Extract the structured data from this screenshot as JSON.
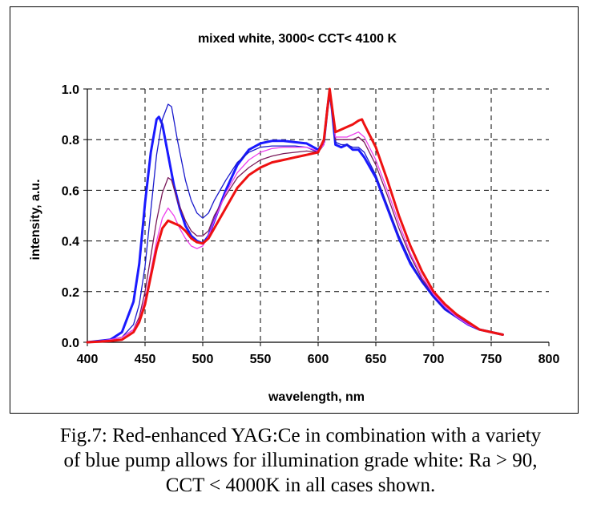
{
  "chart_data": {
    "type": "line",
    "title": "mixed white, 3000< CCT< 4100 K",
    "xlabel": "wavelength, nm",
    "ylabel": "intensity, a.u.",
    "xlim": [
      400,
      800
    ],
    "ylim": [
      0,
      1.0
    ],
    "x_ticks": [
      "400",
      "450",
      "500",
      "550",
      "600",
      "650",
      "700",
      "750",
      "800"
    ],
    "y_ticks": [
      "0.0",
      "0.2",
      "0.4",
      "0.6",
      "0.8",
      "1.0"
    ],
    "grid": "dashed",
    "legend": "none",
    "series": [
      {
        "color": "#1a1aff",
        "style": "thick",
        "points": [
          [
            400,
            0.0
          ],
          [
            420,
            0.01
          ],
          [
            430,
            0.04
          ],
          [
            440,
            0.16
          ],
          [
            445,
            0.31
          ],
          [
            450,
            0.55
          ],
          [
            455,
            0.75
          ],
          [
            460,
            0.88
          ],
          [
            462,
            0.89
          ],
          [
            465,
            0.86
          ],
          [
            470,
            0.74
          ],
          [
            475,
            0.62
          ],
          [
            480,
            0.53
          ],
          [
            485,
            0.46
          ],
          [
            490,
            0.42
          ],
          [
            495,
            0.4
          ],
          [
            500,
            0.39
          ],
          [
            505,
            0.42
          ],
          [
            510,
            0.48
          ],
          [
            520,
            0.6
          ],
          [
            530,
            0.7
          ],
          [
            540,
            0.76
          ],
          [
            550,
            0.785
          ],
          [
            560,
            0.795
          ],
          [
            570,
            0.795
          ],
          [
            580,
            0.79
          ],
          [
            590,
            0.785
          ],
          [
            600,
            0.76
          ],
          [
            605,
            0.79
          ],
          [
            608,
            0.92
          ],
          [
            610,
            0.99
          ],
          [
            612,
            0.92
          ],
          [
            615,
            0.78
          ],
          [
            620,
            0.77
          ],
          [
            625,
            0.78
          ],
          [
            630,
            0.76
          ],
          [
            635,
            0.76
          ],
          [
            640,
            0.73
          ],
          [
            650,
            0.65
          ],
          [
            660,
            0.53
          ],
          [
            670,
            0.41
          ],
          [
            680,
            0.31
          ],
          [
            690,
            0.24
          ],
          [
            700,
            0.18
          ],
          [
            710,
            0.13
          ],
          [
            720,
            0.1
          ],
          [
            730,
            0.07
          ],
          [
            740,
            0.05
          ],
          [
            750,
            0.04
          ],
          [
            760,
            0.03
          ]
        ]
      },
      {
        "color": "#1a1acc",
        "style": "thin",
        "points": [
          [
            400,
            0.0
          ],
          [
            420,
            0.01
          ],
          [
            430,
            0.02
          ],
          [
            440,
            0.07
          ],
          [
            445,
            0.15
          ],
          [
            450,
            0.3
          ],
          [
            455,
            0.52
          ],
          [
            460,
            0.74
          ],
          [
            465,
            0.88
          ],
          [
            470,
            0.94
          ],
          [
            473,
            0.93
          ],
          [
            478,
            0.8
          ],
          [
            485,
            0.64
          ],
          [
            490,
            0.56
          ],
          [
            495,
            0.51
          ],
          [
            500,
            0.49
          ],
          [
            505,
            0.51
          ],
          [
            510,
            0.56
          ],
          [
            520,
            0.64
          ],
          [
            530,
            0.71
          ],
          [
            540,
            0.75
          ],
          [
            550,
            0.77
          ],
          [
            560,
            0.775
          ],
          [
            570,
            0.775
          ],
          [
            580,
            0.775
          ],
          [
            590,
            0.77
          ],
          [
            600,
            0.75
          ],
          [
            605,
            0.78
          ],
          [
            608,
            0.92
          ],
          [
            610,
            0.99
          ],
          [
            612,
            0.92
          ],
          [
            615,
            0.79
          ],
          [
            620,
            0.78
          ],
          [
            625,
            0.78
          ],
          [
            630,
            0.77
          ],
          [
            635,
            0.77
          ],
          [
            640,
            0.75
          ],
          [
            650,
            0.66
          ],
          [
            660,
            0.54
          ],
          [
            670,
            0.42
          ],
          [
            680,
            0.32
          ],
          [
            690,
            0.24
          ],
          [
            700,
            0.18
          ],
          [
            710,
            0.13
          ],
          [
            720,
            0.1
          ],
          [
            730,
            0.07
          ],
          [
            740,
            0.05
          ],
          [
            750,
            0.04
          ],
          [
            760,
            0.03
          ]
        ]
      },
      {
        "color": "#7a1a5a",
        "style": "thin",
        "points": [
          [
            400,
            0.0
          ],
          [
            420,
            0.01
          ],
          [
            430,
            0.02
          ],
          [
            440,
            0.05
          ],
          [
            445,
            0.1
          ],
          [
            450,
            0.2
          ],
          [
            455,
            0.34
          ],
          [
            460,
            0.48
          ],
          [
            465,
            0.59
          ],
          [
            470,
            0.65
          ],
          [
            473,
            0.64
          ],
          [
            478,
            0.56
          ],
          [
            485,
            0.48
          ],
          [
            490,
            0.44
          ],
          [
            495,
            0.42
          ],
          [
            500,
            0.42
          ],
          [
            505,
            0.44
          ],
          [
            510,
            0.5
          ],
          [
            520,
            0.58
          ],
          [
            530,
            0.65
          ],
          [
            540,
            0.69
          ],
          [
            550,
            0.72
          ],
          [
            560,
            0.735
          ],
          [
            570,
            0.745
          ],
          [
            580,
            0.75
          ],
          [
            590,
            0.755
          ],
          [
            600,
            0.75
          ],
          [
            605,
            0.78
          ],
          [
            608,
            0.92
          ],
          [
            610,
            0.99
          ],
          [
            612,
            0.92
          ],
          [
            615,
            0.8
          ],
          [
            620,
            0.8
          ],
          [
            625,
            0.8
          ],
          [
            630,
            0.8
          ],
          [
            635,
            0.81
          ],
          [
            640,
            0.79
          ],
          [
            650,
            0.7
          ],
          [
            660,
            0.58
          ],
          [
            670,
            0.45
          ],
          [
            680,
            0.34
          ],
          [
            690,
            0.25
          ],
          [
            700,
            0.19
          ],
          [
            710,
            0.14
          ],
          [
            720,
            0.1
          ],
          [
            730,
            0.07
          ],
          [
            740,
            0.05
          ],
          [
            750,
            0.04
          ],
          [
            760,
            0.03
          ]
        ]
      },
      {
        "color": "#ee40ee",
        "style": "thin",
        "points": [
          [
            400,
            0.0
          ],
          [
            420,
            0.01
          ],
          [
            430,
            0.02
          ],
          [
            440,
            0.05
          ],
          [
            445,
            0.09
          ],
          [
            450,
            0.17
          ],
          [
            455,
            0.28
          ],
          [
            460,
            0.4
          ],
          [
            465,
            0.49
          ],
          [
            470,
            0.53
          ],
          [
            475,
            0.5
          ],
          [
            480,
            0.45
          ],
          [
            485,
            0.41
          ],
          [
            490,
            0.38
          ],
          [
            495,
            0.37
          ],
          [
            500,
            0.38
          ],
          [
            505,
            0.42
          ],
          [
            510,
            0.48
          ],
          [
            520,
            0.59
          ],
          [
            530,
            0.67
          ],
          [
            540,
            0.72
          ],
          [
            550,
            0.75
          ],
          [
            560,
            0.765
          ],
          [
            570,
            0.77
          ],
          [
            580,
            0.77
          ],
          [
            590,
            0.77
          ],
          [
            600,
            0.755
          ],
          [
            605,
            0.78
          ],
          [
            608,
            0.92
          ],
          [
            610,
            0.99
          ],
          [
            612,
            0.92
          ],
          [
            615,
            0.81
          ],
          [
            620,
            0.81
          ],
          [
            625,
            0.81
          ],
          [
            630,
            0.82
          ],
          [
            635,
            0.83
          ],
          [
            640,
            0.81
          ],
          [
            650,
            0.72
          ],
          [
            660,
            0.6
          ],
          [
            670,
            0.47
          ],
          [
            680,
            0.35
          ],
          [
            690,
            0.26
          ],
          [
            700,
            0.19
          ],
          [
            710,
            0.14
          ],
          [
            720,
            0.1
          ],
          [
            730,
            0.07
          ],
          [
            740,
            0.05
          ],
          [
            750,
            0.04
          ],
          [
            760,
            0.03
          ]
        ]
      },
      {
        "color": "#ee1111",
        "style": "thick",
        "points": [
          [
            400,
            0.0
          ],
          [
            420,
            0.005
          ],
          [
            430,
            0.01
          ],
          [
            440,
            0.04
          ],
          [
            445,
            0.08
          ],
          [
            450,
            0.15
          ],
          [
            455,
            0.26
          ],
          [
            460,
            0.37
          ],
          [
            465,
            0.45
          ],
          [
            470,
            0.48
          ],
          [
            475,
            0.47
          ],
          [
            480,
            0.46
          ],
          [
            485,
            0.44
          ],
          [
            490,
            0.41
          ],
          [
            495,
            0.395
          ],
          [
            500,
            0.39
          ],
          [
            505,
            0.41
          ],
          [
            510,
            0.45
          ],
          [
            520,
            0.53
          ],
          [
            530,
            0.61
          ],
          [
            540,
            0.66
          ],
          [
            550,
            0.69
          ],
          [
            560,
            0.71
          ],
          [
            570,
            0.72
          ],
          [
            580,
            0.73
          ],
          [
            590,
            0.74
          ],
          [
            600,
            0.75
          ],
          [
            605,
            0.8
          ],
          [
            608,
            0.92
          ],
          [
            610,
            1.0
          ],
          [
            612,
            0.93
          ],
          [
            615,
            0.83
          ],
          [
            620,
            0.84
          ],
          [
            625,
            0.85
          ],
          [
            630,
            0.86
          ],
          [
            635,
            0.875
          ],
          [
            638,
            0.88
          ],
          [
            640,
            0.86
          ],
          [
            650,
            0.77
          ],
          [
            660,
            0.64
          ],
          [
            670,
            0.5
          ],
          [
            680,
            0.38
          ],
          [
            690,
            0.28
          ],
          [
            700,
            0.2
          ],
          [
            710,
            0.15
          ],
          [
            720,
            0.11
          ],
          [
            730,
            0.08
          ],
          [
            740,
            0.05
          ],
          [
            750,
            0.04
          ],
          [
            760,
            0.03
          ]
        ]
      }
    ]
  },
  "caption": {
    "line1": "Fig.7: Red-enhanced YAG:Ce in combination with a variety",
    "line2": "of blue pump allows for illumination grade white: Ra > 90,",
    "line3": "CCT < 4000K in all cases shown."
  }
}
